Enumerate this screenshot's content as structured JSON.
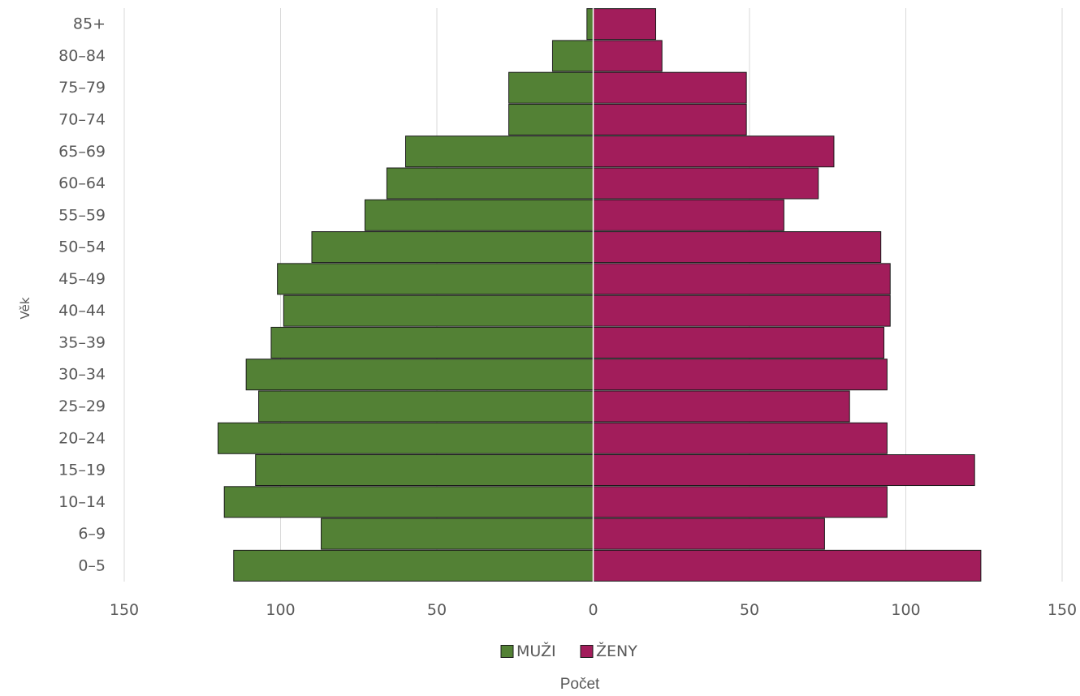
{
  "chart_data": {
    "type": "bar",
    "orientation": "horizontal",
    "subtype": "population-pyramid",
    "title": "",
    "xlabel": "Počet",
    "ylabel": "Věk",
    "categories": [
      "0–5",
      "6–9",
      "10–14",
      "15–19",
      "20–24",
      "25–29",
      "30–34",
      "35–39",
      "40–44",
      "45–49",
      "50–54",
      "55–59",
      "60–64",
      "65–69",
      "70–74",
      "75–79",
      "80–84",
      "85+"
    ],
    "series": [
      {
        "name": "MUŽI",
        "color": "#538135",
        "side": "left",
        "values": [
          115,
          87,
          118,
          108,
          120,
          107,
          111,
          103,
          99,
          101,
          90,
          73,
          66,
          60,
          27,
          27,
          13,
          2
        ]
      },
      {
        "name": "ŽENY",
        "color": "#A21D5B",
        "side": "right",
        "values": [
          124,
          74,
          94,
          122,
          94,
          82,
          94,
          93,
          95,
          95,
          92,
          61,
          72,
          77,
          49,
          49,
          22,
          20
        ]
      }
    ],
    "xlim": [
      -150,
      150
    ],
    "x_ticks": [
      -150,
      -100,
      -50,
      0,
      50,
      100,
      150
    ],
    "x_tick_labels": [
      "150",
      "100",
      "50",
      "0",
      "50",
      "100",
      "150"
    ],
    "grid": true,
    "legend_position": "bottom"
  }
}
